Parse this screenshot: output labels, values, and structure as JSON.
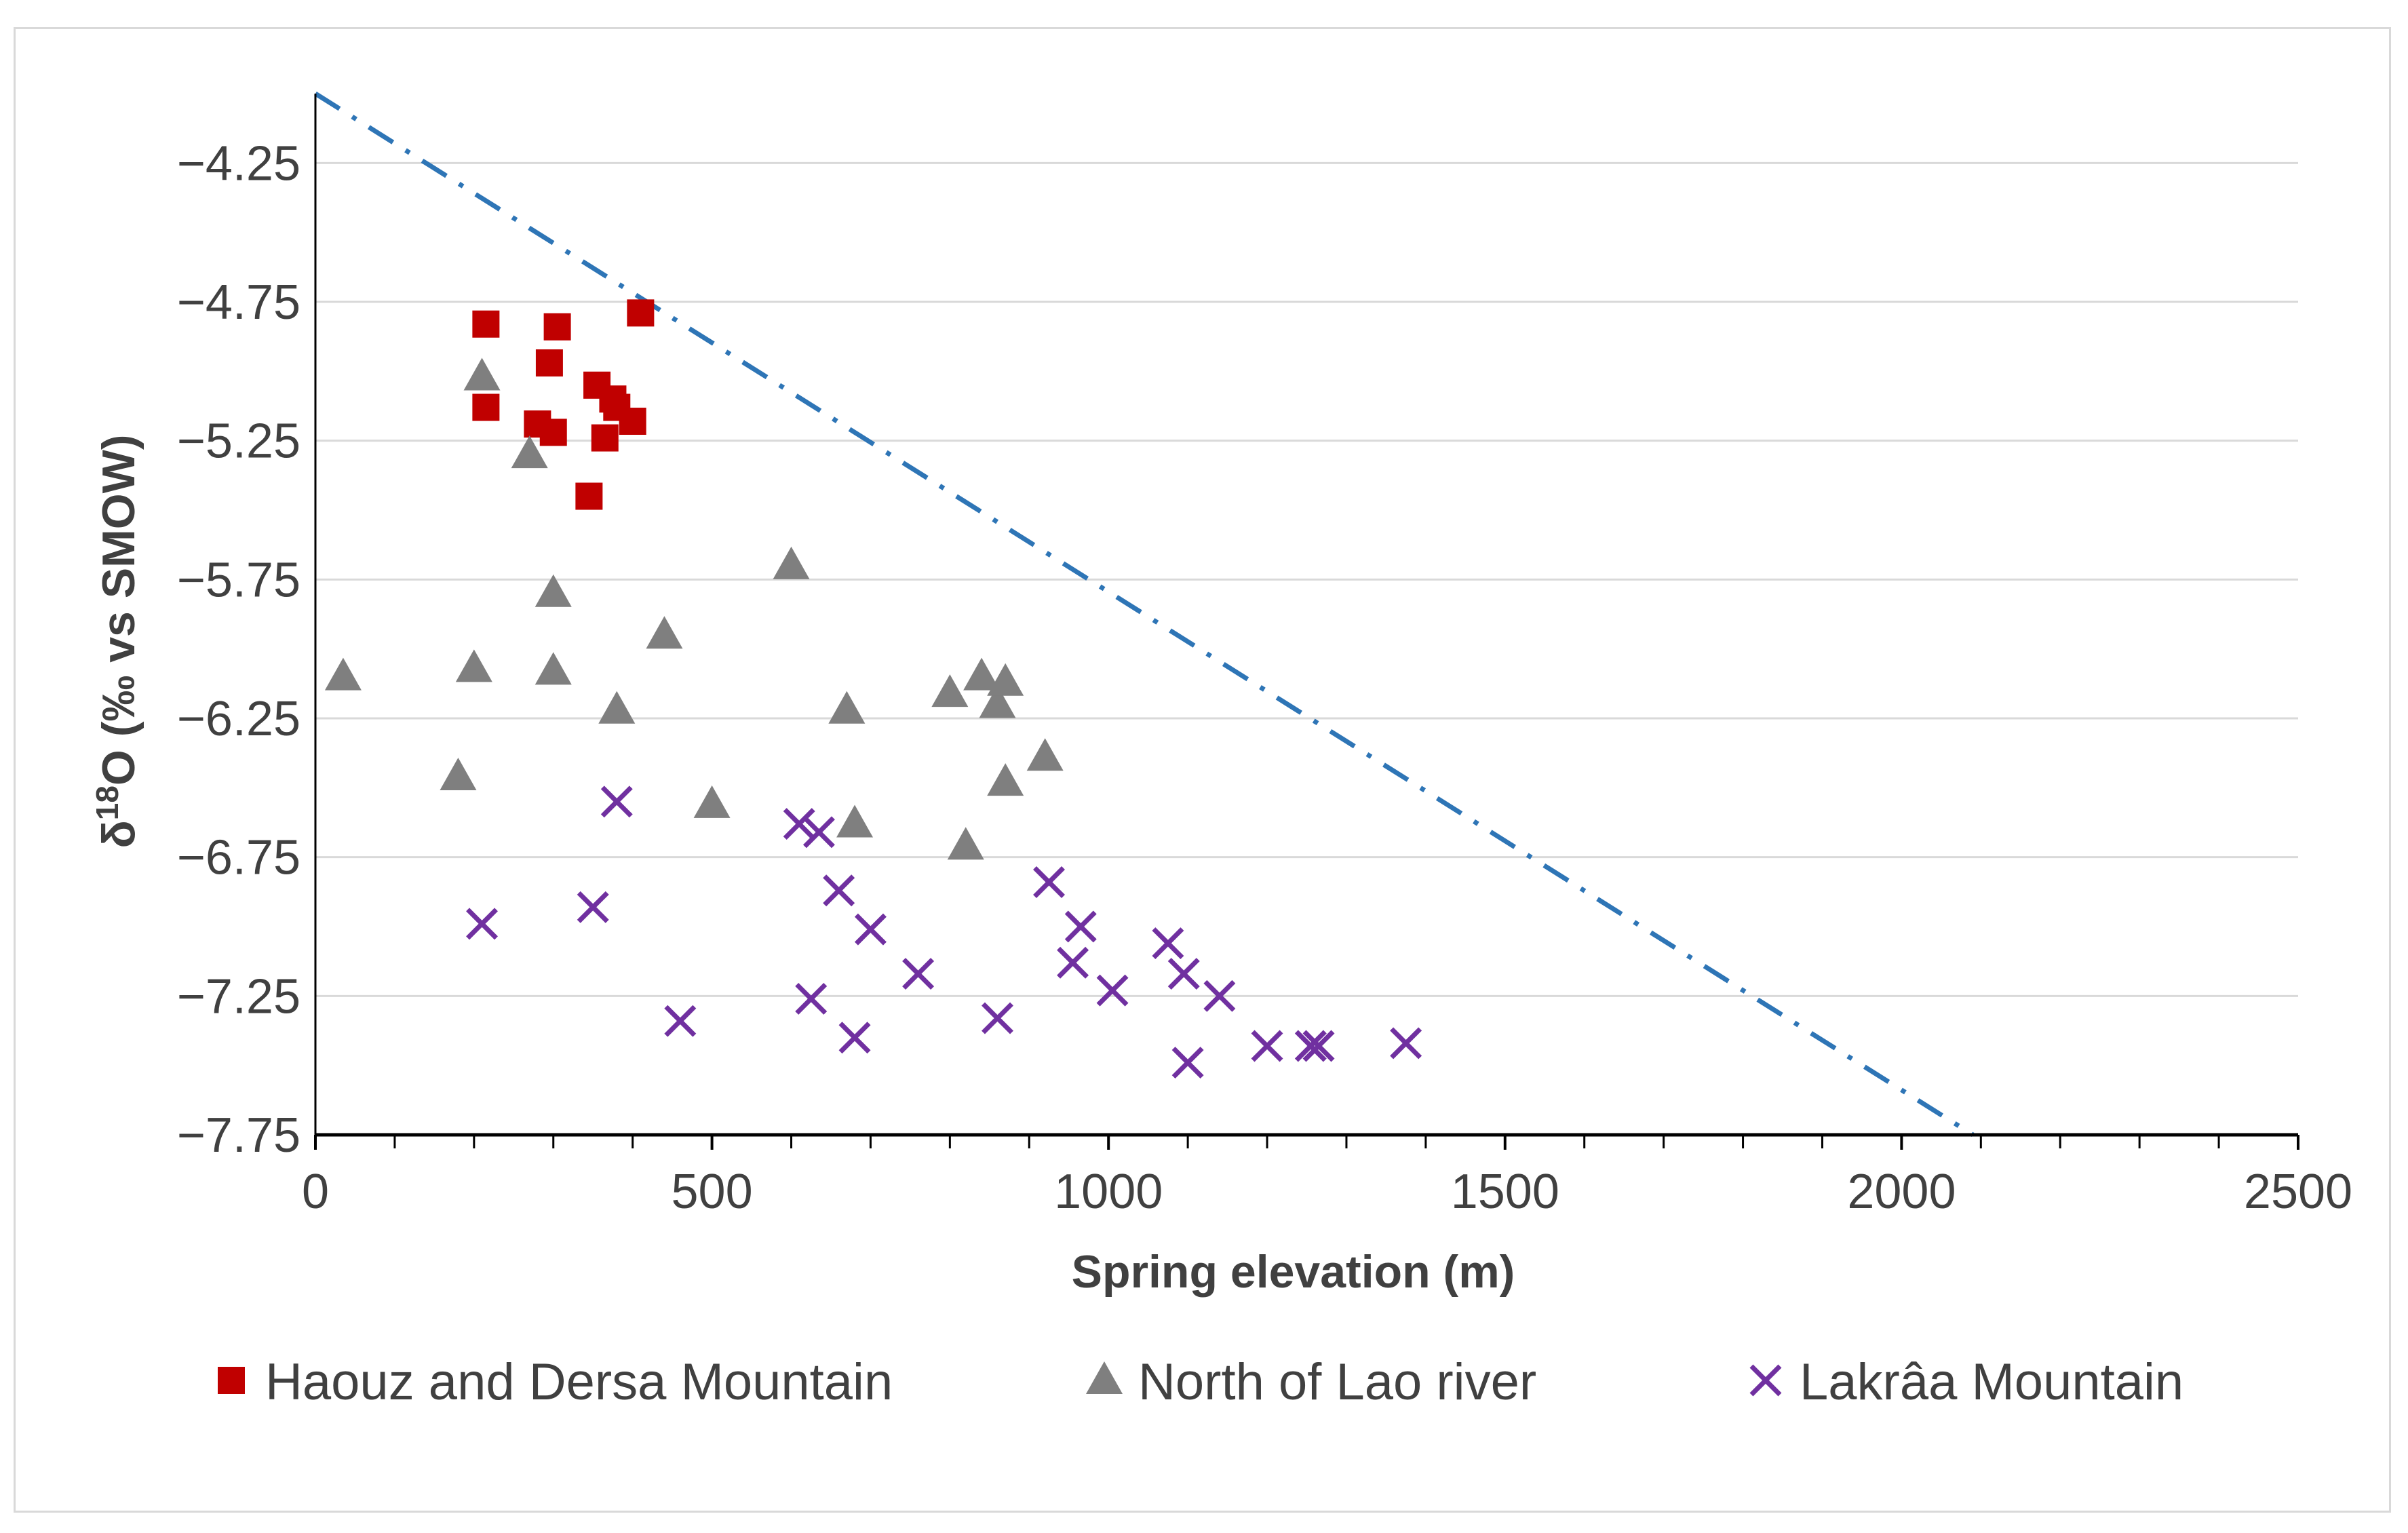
{
  "chart_data": {
    "type": "scatter",
    "title": "",
    "xlabel": "Spring elevation (m)",
    "ylabel_parts": {
      "delta": "δ",
      "sup": "18",
      "rest": "O (‰ vs SMOW)"
    },
    "xlim": [
      0,
      2500
    ],
    "ylim": [
      -7.75,
      -4.0
    ],
    "x_ticks": [
      0,
      500,
      1000,
      1500,
      2000,
      2500
    ],
    "x_tick_labels": [
      "0",
      "500",
      "1000",
      "1500",
      "2000",
      "2500"
    ],
    "y_ticks": [
      -4.25,
      -4.75,
      -5.25,
      -5.75,
      -6.25,
      -6.75,
      -7.25,
      -7.75
    ],
    "y_tick_labels": [
      "−4.25",
      "−4.75",
      "−5.25",
      "−5.75",
      "−6.25",
      "−6.75",
      "−7.25",
      "−7.75"
    ],
    "grid": "horizontal",
    "legend_position": "bottom",
    "trend_line": {
      "style": "dash-dot",
      "color": "#2e75b6",
      "points": [
        [
          0,
          -4.0
        ],
        [
          2090,
          -7.75
        ]
      ]
    },
    "series": [
      {
        "name": "Haouz and Dersa Mountain",
        "marker": "square",
        "color": "#c00000",
        "points": [
          [
            215,
            -4.83
          ],
          [
            305,
            -4.84
          ],
          [
            410,
            -4.79
          ],
          [
            295,
            -4.97
          ],
          [
            215,
            -5.13
          ],
          [
            355,
            -5.05
          ],
          [
            375,
            -5.1
          ],
          [
            380,
            -5.13
          ],
          [
            280,
            -5.19
          ],
          [
            400,
            -5.18
          ],
          [
            300,
            -5.22
          ],
          [
            365,
            -5.24
          ],
          [
            345,
            -5.45
          ]
        ]
      },
      {
        "name": "North of Lao river",
        "marker": "triangle",
        "color": "#7f7f7f",
        "points": [
          [
            210,
            -5.02
          ],
          [
            270,
            -5.3
          ],
          [
            300,
            -5.8
          ],
          [
            35,
            -6.1
          ],
          [
            200,
            -6.07
          ],
          [
            300,
            -6.08
          ],
          [
            440,
            -5.95
          ],
          [
            380,
            -6.22
          ],
          [
            600,
            -5.7
          ],
          [
            180,
            -6.46
          ],
          [
            500,
            -6.56
          ],
          [
            670,
            -6.22
          ],
          [
            680,
            -6.63
          ],
          [
            800,
            -6.16
          ],
          [
            840,
            -6.1
          ],
          [
            860,
            -6.2
          ],
          [
            870,
            -6.12
          ],
          [
            870,
            -6.48
          ],
          [
            920,
            -6.39
          ],
          [
            820,
            -6.71
          ]
        ]
      },
      {
        "name": "Lakrâa Mountain",
        "marker": "x",
        "color": "#7030a0",
        "points": [
          [
            380,
            -6.55
          ],
          [
            210,
            -6.99
          ],
          [
            350,
            -6.93
          ],
          [
            460,
            -7.34
          ],
          [
            610,
            -6.63
          ],
          [
            635,
            -6.66
          ],
          [
            660,
            -6.87
          ],
          [
            700,
            -7.01
          ],
          [
            625,
            -7.26
          ],
          [
            680,
            -7.4
          ],
          [
            760,
            -7.17
          ],
          [
            860,
            -7.33
          ],
          [
            925,
            -6.84
          ],
          [
            965,
            -7.0
          ],
          [
            955,
            -7.13
          ],
          [
            1005,
            -7.23
          ],
          [
            1075,
            -7.06
          ],
          [
            1095,
            -7.17
          ],
          [
            1140,
            -7.25
          ],
          [
            1200,
            -7.43
          ],
          [
            1255,
            -7.43
          ],
          [
            1265,
            -7.43
          ],
          [
            1375,
            -7.42
          ],
          [
            1100,
            -7.49
          ]
        ]
      }
    ]
  }
}
